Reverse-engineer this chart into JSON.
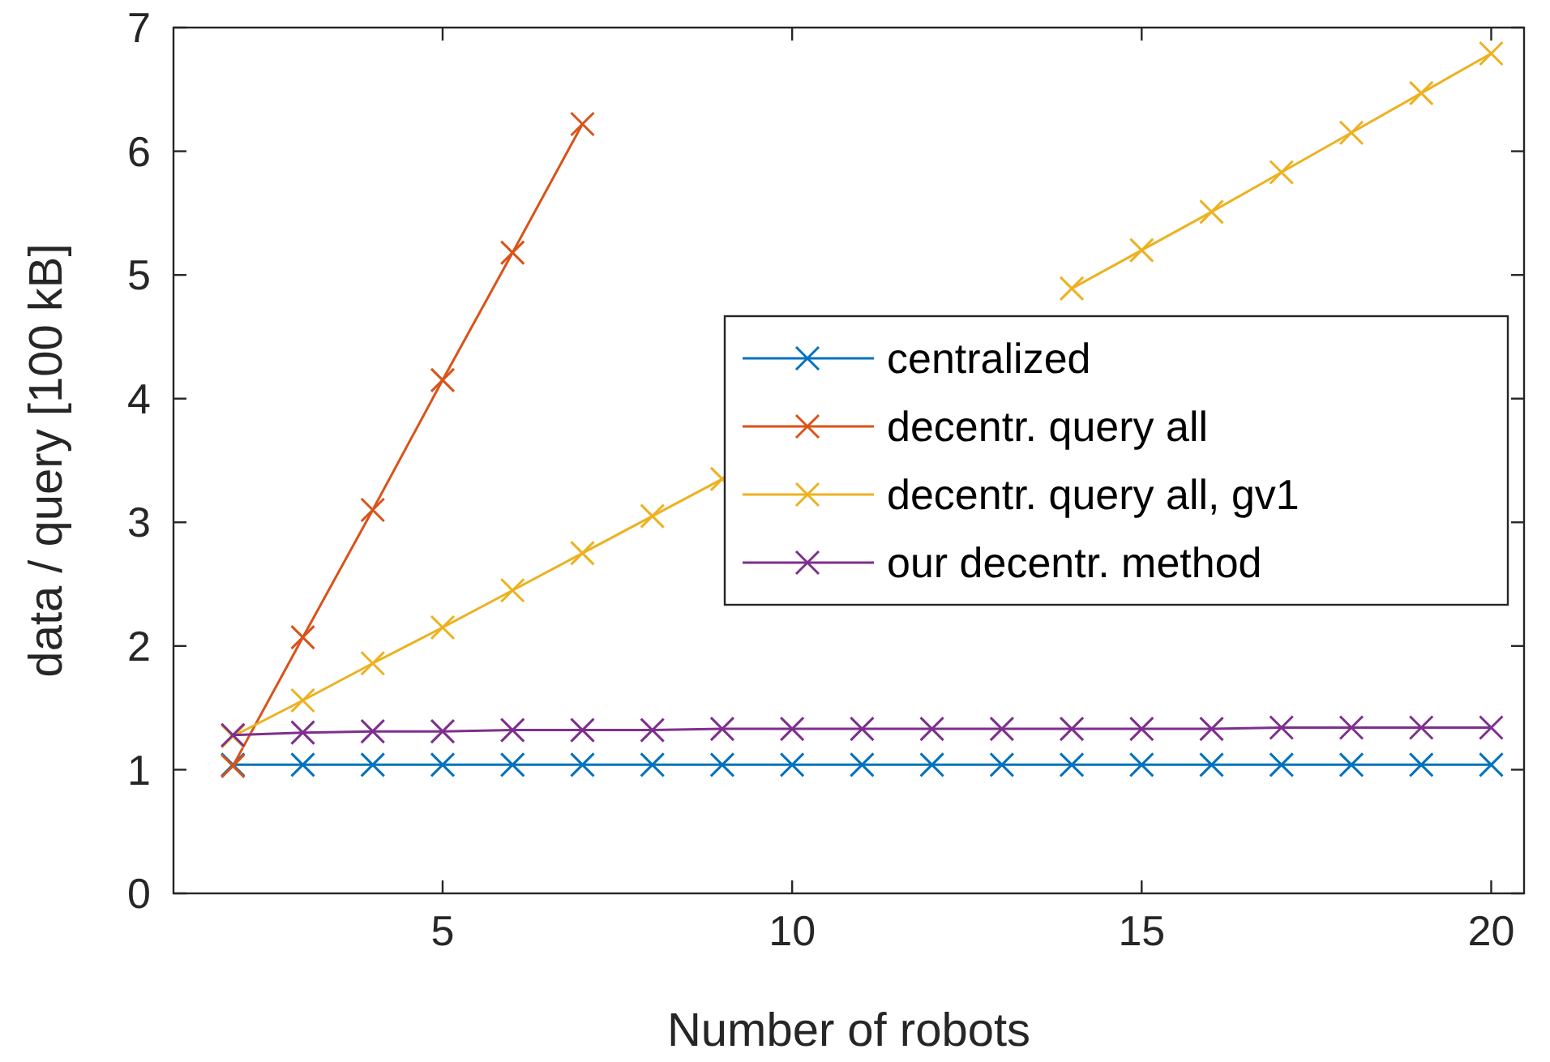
{
  "chart_data": {
    "type": "line",
    "xlabel": "Number of robots",
    "ylabel": "data / query [100 kB]",
    "x": [
      2,
      3,
      4,
      5,
      6,
      7,
      8,
      9,
      10,
      11,
      12,
      13,
      14,
      15,
      16,
      17,
      18,
      19,
      20
    ],
    "series": [
      {
        "name": "centralized",
        "color": "#0072bd",
        "values": [
          1.04,
          1.04,
          1.04,
          1.04,
          1.04,
          1.04,
          1.04,
          1.04,
          1.04,
          1.04,
          1.04,
          1.04,
          1.04,
          1.04,
          1.04,
          1.04,
          1.04,
          1.04,
          1.04
        ]
      },
      {
        "name": "decentr. query all",
        "color": "#d95319",
        "values": [
          1.03,
          2.07,
          3.1,
          4.15,
          5.18,
          6.22,
          null,
          null,
          null,
          null,
          null,
          null,
          null,
          null,
          null,
          null,
          null,
          null,
          null
        ]
      },
      {
        "name": "decentr. query all, gv1",
        "color": "#edb120",
        "values": [
          1.27,
          1.56,
          1.86,
          2.15,
          2.45,
          2.75,
          3.05,
          3.35,
          null,
          null,
          null,
          null,
          4.89,
          5.2,
          5.51,
          5.83,
          6.15,
          6.47,
          6.79
        ]
      },
      {
        "name": "our decentr. method",
        "color": "#7e2f8e",
        "values": [
          1.28,
          1.3,
          1.31,
          1.31,
          1.32,
          1.32,
          1.32,
          1.33,
          1.33,
          1.33,
          1.33,
          1.33,
          1.33,
          1.33,
          1.33,
          1.34,
          1.34,
          1.34,
          1.34
        ]
      }
    ],
    "xlim": [
      1.15,
      20.47
    ],
    "xticks": [
      5,
      10,
      15,
      20
    ],
    "ylim": [
      0,
      7
    ],
    "yticks": [
      0,
      1,
      2,
      3,
      4,
      5,
      6,
      7
    ],
    "grid": false,
    "legend": "right",
    "marker": "cross",
    "line_style": "solid"
  }
}
